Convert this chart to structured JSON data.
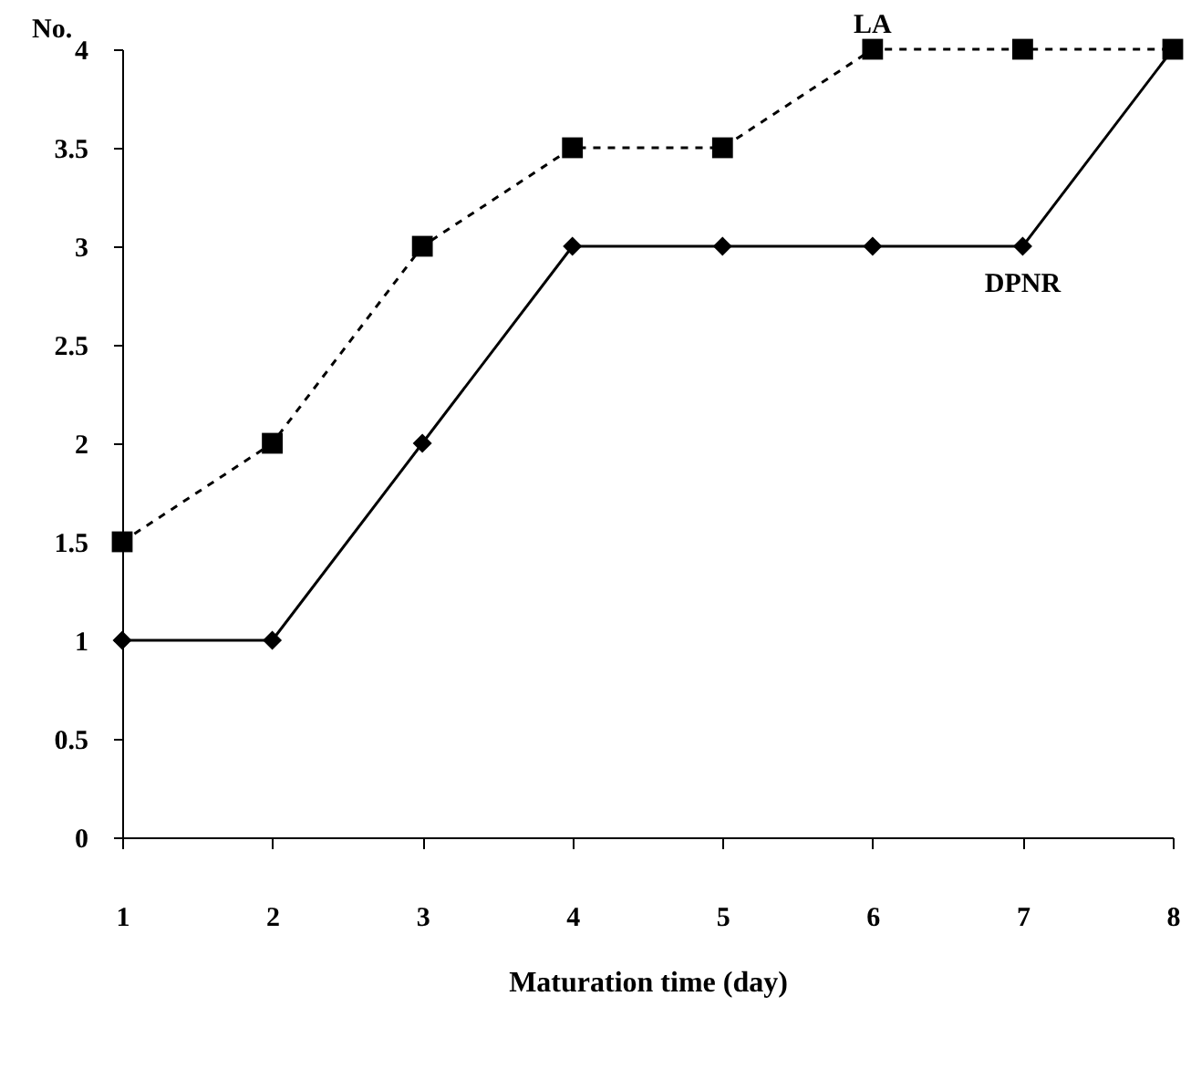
{
  "chart_data": {
    "type": "line",
    "xlabel": "Maturation time (day)",
    "ylabel": "No.",
    "x": [
      1,
      2,
      3,
      4,
      5,
      6,
      7,
      8
    ],
    "xlim": [
      1,
      8
    ],
    "xticks": [
      1,
      2,
      3,
      4,
      5,
      6,
      7,
      8
    ],
    "ylim": [
      0,
      4
    ],
    "yticks": [
      0,
      0.5,
      1,
      1.5,
      2,
      2.5,
      3,
      3.5,
      4
    ],
    "grid": false,
    "series": [
      {
        "name": "LA",
        "color": "#000000",
        "marker": "square",
        "line_style": "dashed",
        "values": [
          1.5,
          2,
          3,
          3.5,
          3.5,
          4,
          4,
          4
        ]
      },
      {
        "name": "DPNR",
        "color": "#000000",
        "marker": "diamond",
        "line_style": "solid",
        "values": [
          1,
          1,
          2,
          3,
          3,
          3,
          3,
          4
        ]
      }
    ]
  }
}
